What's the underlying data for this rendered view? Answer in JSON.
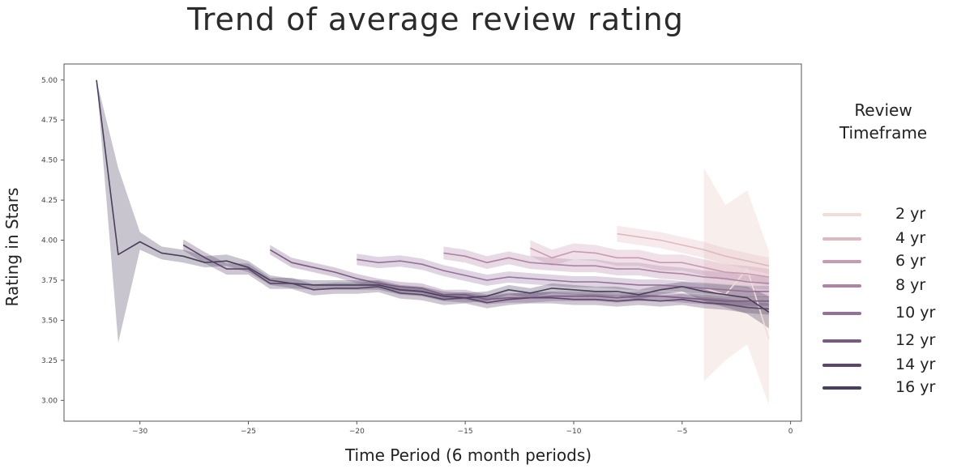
{
  "chart_data": {
    "type": "line",
    "title": "Trend of average review rating",
    "xlabel": "Time Period (6 month periods)",
    "ylabel": "Rating in Stars",
    "xlim": [
      -33.5,
      0.5
    ],
    "ylim": [
      2.87,
      5.1
    ],
    "x_ticks": [
      -30,
      -25,
      -20,
      -15,
      -10,
      -5,
      0
    ],
    "x_tick_labels": [
      "−30",
      "−25",
      "−20",
      "−15",
      "−10",
      "−5",
      "0"
    ],
    "y_ticks": [
      3.0,
      3.25,
      3.5,
      3.75,
      4.0,
      4.25,
      4.5,
      4.75,
      5.0
    ],
    "y_tick_labels": [
      "3.00",
      "3.25",
      "3.50",
      "3.75",
      "4.00",
      "4.25",
      "4.50",
      "4.75",
      "5.00"
    ],
    "grid": false,
    "legend_title": "Review Timeframe",
    "legend_position": "right",
    "series": [
      {
        "name": "2 yr",
        "color": "#f0dcd8",
        "x": [
          -4,
          -3,
          -2,
          -1
        ],
        "y": [
          3.7,
          3.66,
          3.82,
          3.38
        ],
        "lower": [
          3.12,
          3.25,
          3.35,
          2.97
        ],
        "upper": [
          4.45,
          4.22,
          4.31,
          3.93
        ]
      },
      {
        "name": "4 yr",
        "color": "#e0b8c0",
        "x": [
          -8,
          -7,
          -6,
          -5,
          -4,
          -3,
          -2,
          -1
        ],
        "y": [
          4.04,
          4.02,
          4.0,
          3.97,
          3.94,
          3.9,
          3.87,
          3.84
        ],
        "band": 0.05
      },
      {
        "name": "6 yr",
        "color": "#cc99b2",
        "x": [
          -12,
          -11,
          -10,
          -9,
          -8,
          -7,
          -6,
          -5,
          -4,
          -3,
          -2,
          -1
        ],
        "y": [
          3.95,
          3.89,
          3.93,
          3.92,
          3.89,
          3.89,
          3.86,
          3.86,
          3.83,
          3.8,
          3.79,
          3.77
        ],
        "band": 0.05
      },
      {
        "name": "8 yr",
        "color": "#b083a5",
        "x": [
          -16,
          -15,
          -14,
          -13,
          -12,
          -11,
          -10,
          -9,
          -8,
          -7,
          -6,
          -5,
          -4,
          -3,
          -2,
          -1
        ],
        "y": [
          3.92,
          3.9,
          3.86,
          3.89,
          3.86,
          3.85,
          3.84,
          3.84,
          3.82,
          3.82,
          3.8,
          3.79,
          3.77,
          3.76,
          3.74,
          3.73
        ],
        "band": 0.04
      },
      {
        "name": "10 yr",
        "color": "#96709a",
        "x": [
          -20,
          -19,
          -18,
          -17,
          -16,
          -15,
          -14,
          -13,
          -12,
          -11,
          -10,
          -9,
          -8,
          -7,
          -6,
          -5,
          -4,
          -3,
          -2,
          -1
        ],
        "y": [
          3.88,
          3.86,
          3.87,
          3.85,
          3.81,
          3.78,
          3.75,
          3.77,
          3.76,
          3.75,
          3.74,
          3.74,
          3.73,
          3.72,
          3.72,
          3.71,
          3.7,
          3.69,
          3.68,
          3.68
        ],
        "band": 0.035
      },
      {
        "name": "12 yr",
        "color": "#7a5a83",
        "x": [
          -24,
          -23,
          -22,
          -21,
          -20,
          -19,
          -18,
          -17,
          -16,
          -15,
          -14,
          -13,
          -12,
          -11,
          -10,
          -9,
          -8,
          -7,
          -6,
          -5,
          -4,
          -3,
          -2,
          -1
        ],
        "y": [
          3.94,
          3.86,
          3.83,
          3.8,
          3.76,
          3.73,
          3.71,
          3.7,
          3.66,
          3.66,
          3.63,
          3.64,
          3.64,
          3.65,
          3.65,
          3.65,
          3.64,
          3.65,
          3.65,
          3.64,
          3.63,
          3.62,
          3.62,
          3.62
        ],
        "band": 0.03
      },
      {
        "name": "14 yr",
        "color": "#5d466b",
        "x": [
          -28,
          -27,
          -26,
          -25,
          -24,
          -23,
          -22,
          -21,
          -20,
          -19,
          -18,
          -17,
          -16,
          -15,
          -14,
          -13,
          -12,
          -11,
          -10,
          -9,
          -8,
          -7,
          -6,
          -5,
          -4,
          -3,
          -2,
          -1
        ],
        "y": [
          3.97,
          3.89,
          3.82,
          3.82,
          3.73,
          3.73,
          3.69,
          3.7,
          3.7,
          3.71,
          3.67,
          3.66,
          3.63,
          3.64,
          3.61,
          3.63,
          3.64,
          3.64,
          3.63,
          3.63,
          3.62,
          3.63,
          3.62,
          3.63,
          3.61,
          3.6,
          3.58,
          3.57
        ],
        "band": 0.035
      },
      {
        "name": "16 yr",
        "color": "#4a3f5c",
        "x": [
          -32,
          -31,
          -30,
          -29,
          -28,
          -27,
          -26,
          -25,
          -24,
          -23,
          -22,
          -21,
          -20,
          -19,
          -18,
          -17,
          -16,
          -15,
          -14,
          -13,
          -12,
          -11,
          -10,
          -9,
          -8,
          -7,
          -6,
          -5,
          -4,
          -3,
          -2,
          -1
        ],
        "y": [
          5.0,
          3.91,
          3.99,
          3.92,
          3.9,
          3.86,
          3.87,
          3.83,
          3.75,
          3.73,
          3.72,
          3.72,
          3.72,
          3.72,
          3.69,
          3.68,
          3.65,
          3.64,
          3.65,
          3.69,
          3.67,
          3.7,
          3.69,
          3.68,
          3.68,
          3.66,
          3.69,
          3.71,
          3.68,
          3.66,
          3.64,
          3.55
        ],
        "lower": [
          5.0,
          3.36,
          3.94,
          3.88,
          3.86,
          3.83,
          3.84,
          3.8,
          3.72,
          3.7,
          3.69,
          3.69,
          3.69,
          3.69,
          3.66,
          3.65,
          3.62,
          3.61,
          3.62,
          3.66,
          3.64,
          3.67,
          3.66,
          3.65,
          3.65,
          3.63,
          3.66,
          3.68,
          3.62,
          3.58,
          3.54,
          3.45
        ],
        "upper": [
          5.0,
          4.45,
          4.05,
          3.96,
          3.94,
          3.9,
          3.91,
          3.87,
          3.78,
          3.76,
          3.75,
          3.75,
          3.75,
          3.75,
          3.72,
          3.71,
          3.68,
          3.67,
          3.68,
          3.72,
          3.7,
          3.73,
          3.72,
          3.71,
          3.71,
          3.69,
          3.72,
          3.74,
          3.73,
          3.72,
          3.71,
          3.65
        ]
      }
    ]
  }
}
